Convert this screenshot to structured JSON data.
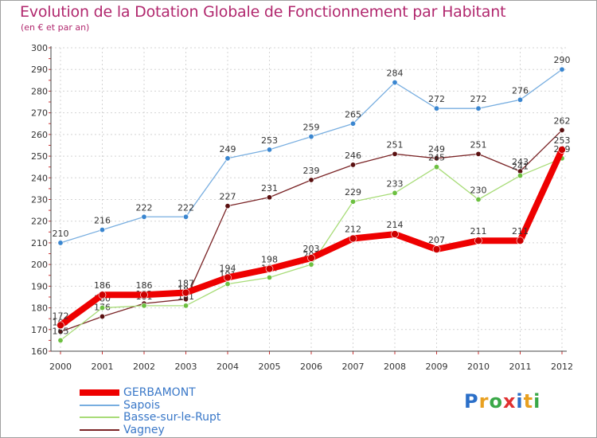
{
  "header": {
    "title": "Evolution de la Dotation Globale de Fonctionnement par Habitant",
    "subtitle": "(en € et par an)"
  },
  "logo": {
    "letters": [
      "P",
      "r",
      "o",
      "x",
      "i",
      "t",
      "i"
    ],
    "colors": [
      "#2b6fc8",
      "#e8a020",
      "#3aa848",
      "#e03030",
      "#2b6fc8",
      "#e8a020",
      "#3aa848"
    ]
  },
  "chart_data": {
    "type": "line",
    "title": "Evolution de la Dotation Globale de Fonctionnement par Habitant",
    "subtitle": "(en € et par an)",
    "xlabel": "",
    "ylabel": "",
    "ylim": [
      160,
      300
    ],
    "yticks": [
      "160",
      "170",
      "180",
      "190",
      "200",
      "210",
      "220",
      "230",
      "240",
      "250",
      "260",
      "270",
      "280",
      "290",
      "300"
    ],
    "x": [
      "2000",
      "2001",
      "2002",
      "2003",
      "2004",
      "2005",
      "2006",
      "2007",
      "2008",
      "2009",
      "2010",
      "2011",
      "2012"
    ],
    "series": [
      {
        "name": "Vagney",
        "color": "#7a2426",
        "marker": "#5a1010",
        "values": [
          169,
          176,
          182,
          184,
          227,
          231,
          239,
          246,
          251,
          249,
          251,
          243,
          262
        ],
        "labels": [
          "169",
          "176",
          "182",
          "184",
          "227",
          "231",
          "239",
          "246",
          "251",
          "249",
          "251",
          "243",
          "262"
        ]
      },
      {
        "name": "Basse-sur-le-Rupt",
        "color": "#a8dc78",
        "marker": "#6cc040",
        "values": [
          165,
          180,
          181,
          181,
          191,
          194,
          200,
          229,
          233,
          245,
          230,
          241,
          249
        ],
        "labels": [
          "165",
          "180",
          "181",
          "181",
          "191",
          "194",
          "200",
          "229",
          "233",
          "245",
          "230",
          "241",
          "249"
        ]
      },
      {
        "name": "Sapois",
        "color": "#78aee0",
        "marker": "#3a86d0",
        "values": [
          210,
          216,
          222,
          222,
          249,
          253,
          259,
          265,
          284,
          272,
          272,
          276,
          290
        ],
        "labels": [
          "210",
          "216",
          "222",
          "222",
          "249",
          "253",
          "259",
          "265",
          "284",
          "272",
          "272",
          "276",
          "290"
        ]
      },
      {
        "name": "GERBAMONT",
        "color": "#ee0000",
        "marker": "#cc0000",
        "values": [
          172,
          186,
          186,
          187,
          194,
          198,
          203,
          212,
          214,
          207,
          211,
          211,
          253
        ],
        "labels": [
          "172",
          "186",
          "186",
          "187",
          "194",
          "198",
          "203",
          "212",
          "214",
          "207",
          "211",
          "211",
          "253"
        ]
      }
    ],
    "legend": [
      "GERBAMONT",
      "Sapois",
      "Basse-sur-le-Rupt",
      "Vagney"
    ],
    "legend_position": "bottom-left",
    "grid": true
  }
}
